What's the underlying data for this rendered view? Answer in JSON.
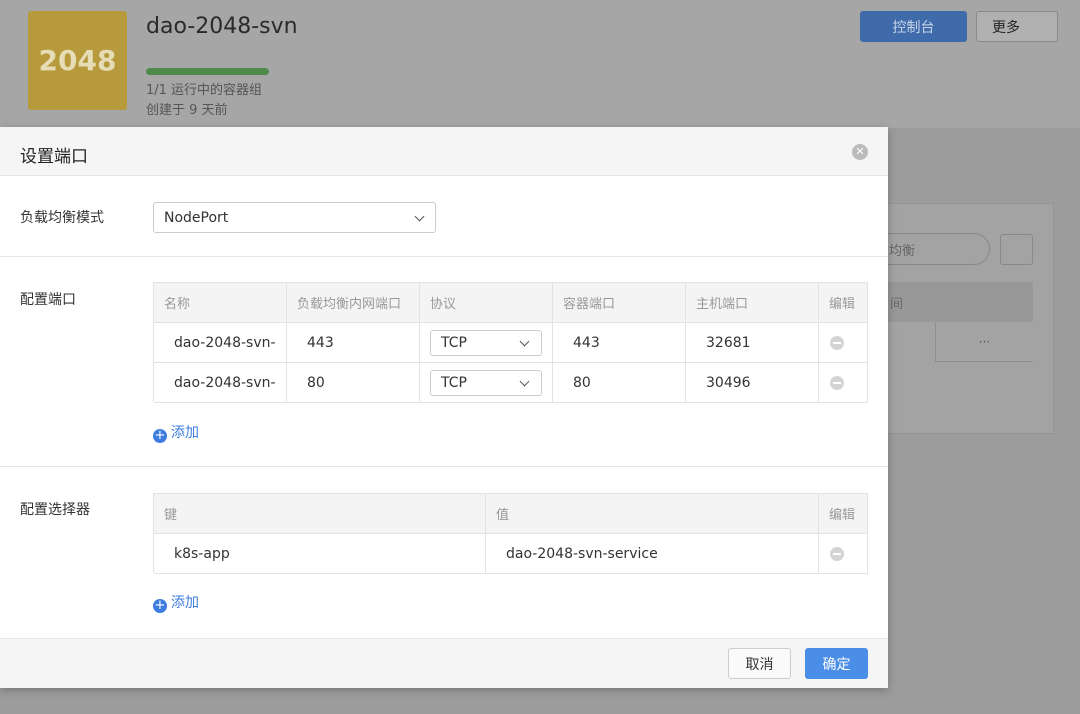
{
  "background": {
    "app_icon": "2048",
    "app_name": "dao-2048-svn",
    "status": "1/1 运行中的容器组",
    "created": "创建于 9 天前",
    "console_button": "控制台",
    "more_button": "更多",
    "search_fragment": "均衡",
    "table_header_fragment": "间",
    "row_more": "···"
  },
  "dialog": {
    "title": "设置端口",
    "lb_mode": {
      "label": "负载均衡模式",
      "value": "NodePort"
    },
    "ports": {
      "label": "配置端口",
      "headers": [
        "名称",
        "负载均衡内网端口",
        "协议",
        "容器端口",
        "主机端口",
        "编辑"
      ],
      "rows": [
        [
          "dao-2048-svn-",
          "443",
          "TCP",
          "443",
          "32681"
        ],
        [
          "dao-2048-svn-",
          "80",
          "TCP",
          "80",
          "30496"
        ]
      ],
      "add": "添加"
    },
    "selector": {
      "label": "配置选择器",
      "headers": [
        "键",
        "值",
        "编辑"
      ],
      "rows": [
        [
          "k8s-app",
          "dao-2048-svn-service"
        ]
      ],
      "add": "添加"
    },
    "cancel": "取消",
    "confirm": "确定"
  }
}
